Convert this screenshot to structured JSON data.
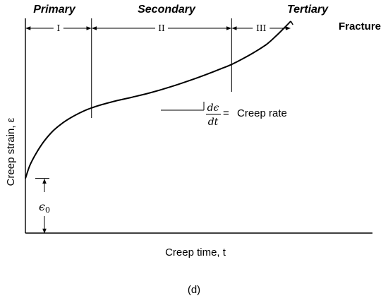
{
  "chart_data": {
    "type": "line",
    "title": "",
    "xlabel": "Creep time, t",
    "ylabel": "Creep strain, ε",
    "grid": false,
    "xlim": [
      0,
      100
    ],
    "ylim": [
      0,
      100
    ],
    "stages": [
      {
        "name": "Primary",
        "numeral": "I",
        "x_start": 0,
        "x_end": 21.9
      },
      {
        "name": "Secondary",
        "numeral": "II",
        "x_start": 21.9,
        "x_end": 68.3
      },
      {
        "name": "Tertiary",
        "numeral": "III",
        "x_start": 68.3,
        "x_end": 87.9
      }
    ],
    "series": [
      {
        "x": [
          0,
          1.5,
          3.5,
          6,
          9,
          12,
          15,
          18,
          21,
          25,
          30,
          35,
          40,
          45,
          50,
          55,
          60,
          65,
          68,
          72,
          76,
          80,
          83,
          85.5,
          87.9
        ],
        "y": [
          25.8,
          32,
          37.5,
          43,
          48,
          51.6,
          54.4,
          56.7,
          58.6,
          60.5,
          62.4,
          64,
          65.7,
          67.7,
          69.9,
          72.3,
          74.9,
          77.7,
          79.4,
          82.3,
          85.5,
          89.2,
          93,
          96.5,
          100
        ]
      }
    ],
    "initial_strain": {
      "label": "ϵ",
      "subscript": "0",
      "value": 25.8
    },
    "annotations": {
      "fracture": "Fracture",
      "rate_numerator": "dϵ",
      "rate_denominator": "dt",
      "rate_equals": "=",
      "rate_text": "Creep rate"
    },
    "caption": "(d)"
  }
}
